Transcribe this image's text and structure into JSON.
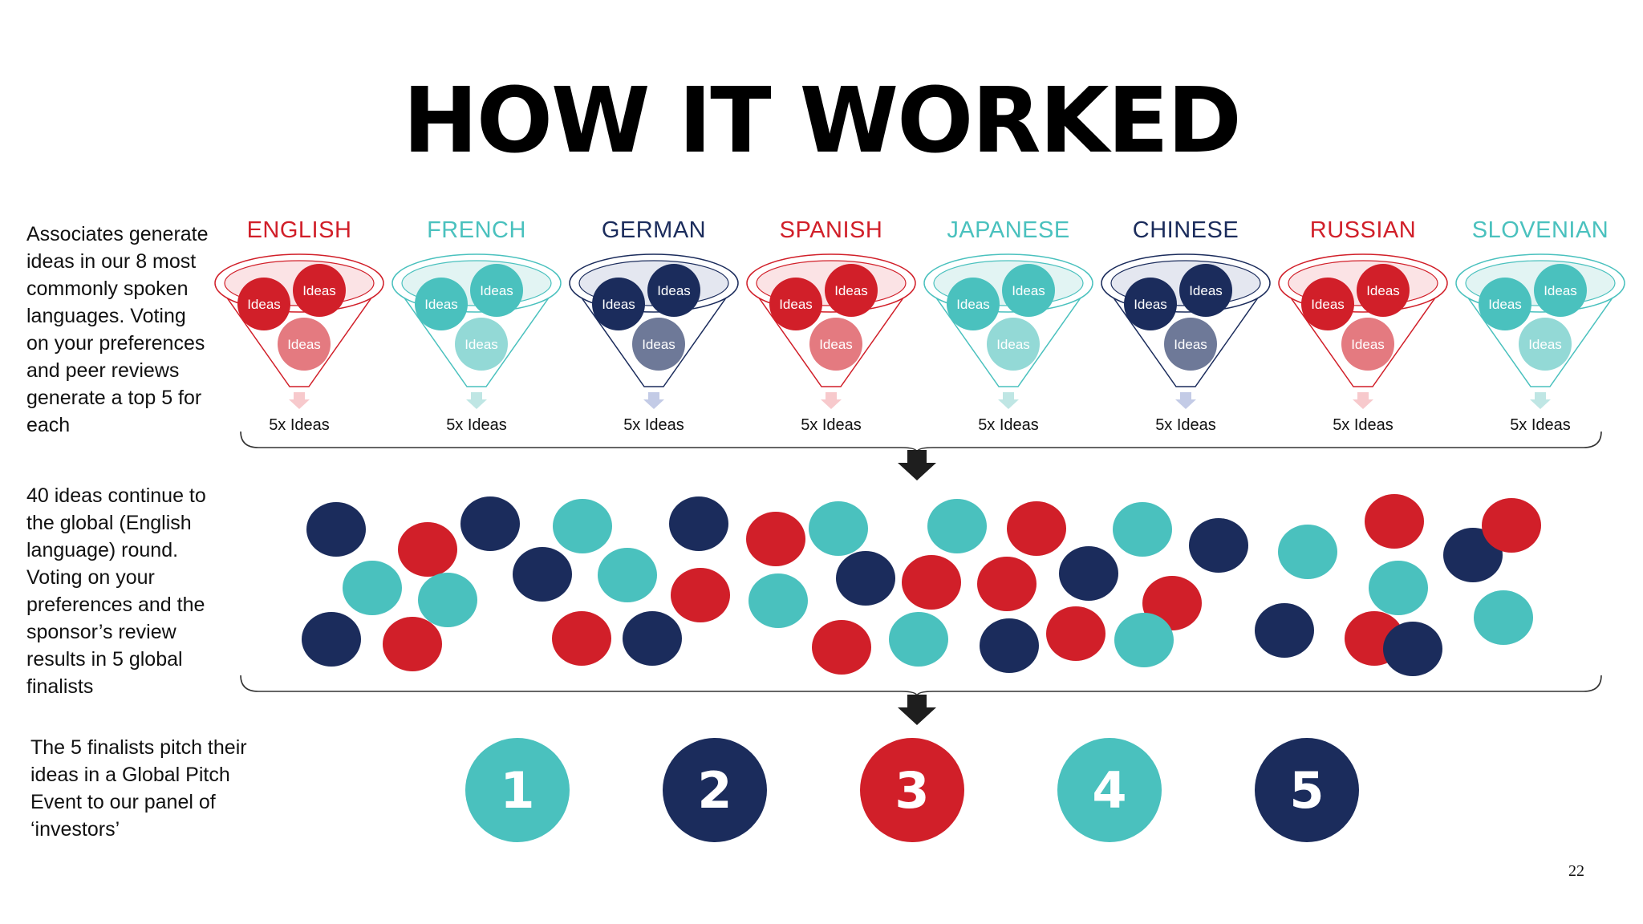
{
  "title": "HOW IT WORKED",
  "colors": {
    "red": "#d11f29",
    "teal": "#4ac1be",
    "navy": "#1b2c5c"
  },
  "step1_text": "Associates generate ideas in our 8 most commonly spoken languages. Voting on your preferences and peer reviews generate a top 5 for each",
  "step2_text": "40 ideas continue to the global (English language) round. Voting on your preferences and the sponsor’s review results in 5 global finalists",
  "step3_text": "The 5 finalists pitch their ideas in a Global Pitch Event to our panel of ‘investors’",
  "funnel_bubble_label": "Ideas",
  "funnel_output_label": "5x Ideas",
  "languages": [
    {
      "name": "ENGLISH",
      "color": "red"
    },
    {
      "name": "FRENCH",
      "color": "teal"
    },
    {
      "name": "GERMAN",
      "color": "navy"
    },
    {
      "name": "SPANISH",
      "color": "red"
    },
    {
      "name": "JAPANESE",
      "color": "teal"
    },
    {
      "name": "CHINESE",
      "color": "navy"
    },
    {
      "name": "RUSSIAN",
      "color": "red"
    },
    {
      "name": "SLOVENIAN",
      "color": "teal"
    }
  ],
  "idea_pool_count": 40,
  "finalists": [
    {
      "label": "1",
      "color": "teal"
    },
    {
      "label": "2",
      "color": "navy"
    },
    {
      "label": "3",
      "color": "red"
    },
    {
      "label": "4",
      "color": "teal"
    },
    {
      "label": "5",
      "color": "navy"
    }
  ],
  "page_number": "22"
}
